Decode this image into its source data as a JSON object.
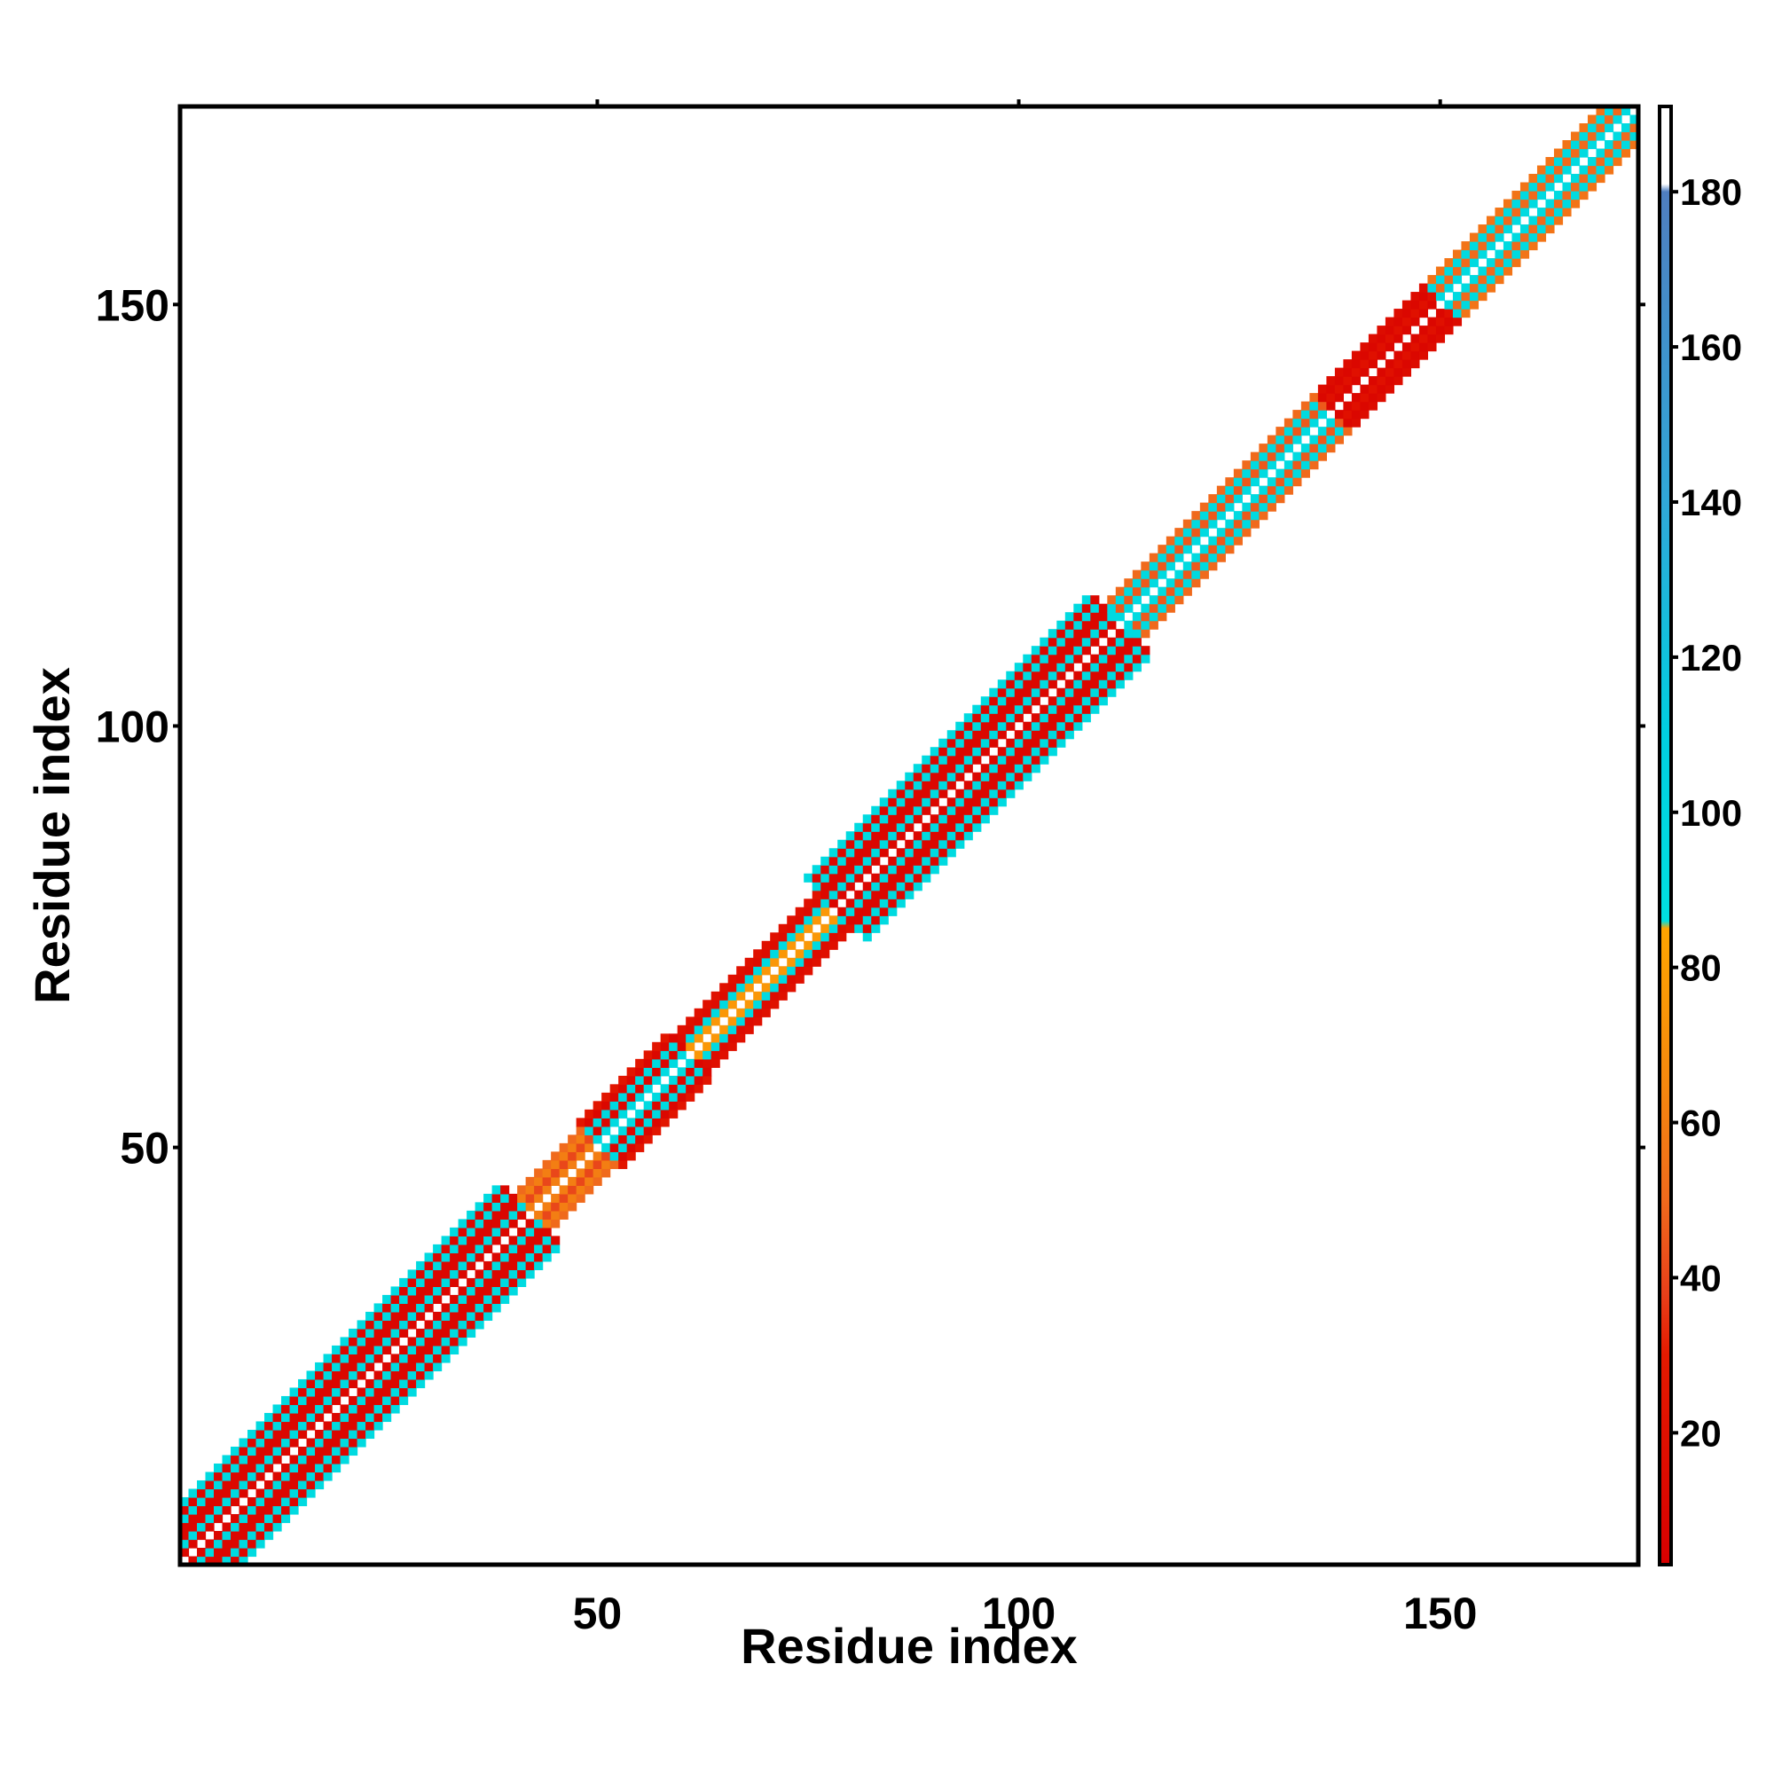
{
  "chart_data": {
    "type": "heatmap",
    "title": "",
    "xlabel": "Residue index",
    "ylabel": "Residue index",
    "xlim": [
      1,
      173
    ],
    "ylim": [
      1,
      173
    ],
    "xticks": [
      50,
      100,
      150
    ],
    "yticks": [
      50,
      100,
      150
    ],
    "grid": false,
    "colorbar": {
      "range": [
        3,
        191
      ],
      "ticks": [
        20,
        40,
        60,
        80,
        100,
        120,
        140,
        160,
        180
      ],
      "stops": [
        {
          "value": 3,
          "color": "#d80000"
        },
        {
          "value": 30,
          "color": "#e41a00"
        },
        {
          "value": 38,
          "color": "#e8401a"
        },
        {
          "value": 50,
          "color": "#f06a1c"
        },
        {
          "value": 65,
          "color": "#f5880e"
        },
        {
          "value": 85,
          "color": "#ffa500"
        },
        {
          "value": 86,
          "color": "#00e0e0"
        },
        {
          "value": 110,
          "color": "#00cfe0"
        },
        {
          "value": 140,
          "color": "#30a8d8"
        },
        {
          "value": 180,
          "color": "#4f7ec0"
        },
        {
          "value": 181,
          "color": "#ffffff"
        },
        {
          "value": 191,
          "color": "#ffffff"
        }
      ]
    },
    "description_note": "",
    "diagonal_band": {
      "ranges": [
        {
          "start": 1,
          "end": 42,
          "halfwidth": 7,
          "edge_value": 95,
          "inner_values": [
            10,
            95,
            10
          ]
        },
        {
          "start": 42,
          "end": 50,
          "halfwidth": 4,
          "edge_value": 50,
          "inner_values": [
            60,
            40
          ]
        },
        {
          "start": 50,
          "end": 61,
          "halfwidth": 5,
          "edge_value": 25,
          "inner_values": [
            95,
            10
          ]
        },
        {
          "start": 61,
          "end": 78,
          "halfwidth": 4,
          "edge_value": 20,
          "inner_values": [
            75,
            95,
            15
          ]
        },
        {
          "start": 78,
          "end": 112,
          "halfwidth": 7,
          "edge_value": 95,
          "inner_values": [
            10,
            95,
            10
          ]
        },
        {
          "start": 112,
          "end": 137,
          "halfwidth": 4,
          "edge_value": 50,
          "inner_values": [
            95,
            45
          ]
        },
        {
          "start": 137,
          "end": 150,
          "halfwidth": 4,
          "edge_value": 15,
          "inner_values": [
            10,
            20
          ]
        },
        {
          "start": 150,
          "end": 173,
          "halfwidth": 4,
          "edge_value": 55,
          "inner_values": [
            95,
            50
          ]
        }
      ]
    }
  }
}
